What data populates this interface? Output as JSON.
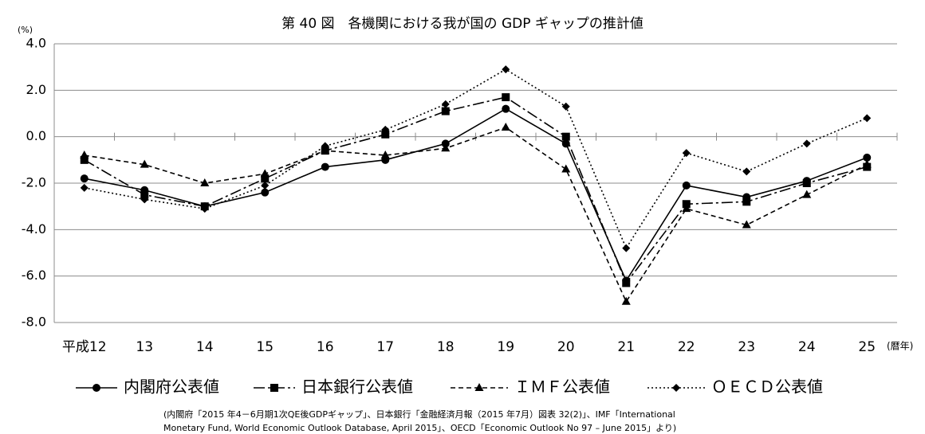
{
  "chart_data": {
    "type": "line",
    "title": "第 40 図　各機関における我が国の GDP ギャップの推計値",
    "y_unit": "(%)",
    "x_unit": "(暦年)",
    "categories": [
      "平成12",
      "13",
      "14",
      "15",
      "16",
      "17",
      "18",
      "19",
      "20",
      "21",
      "22",
      "23",
      "24",
      "25"
    ],
    "ylim": [
      -8,
      4
    ],
    "yticks": [
      {
        "value": -8,
        "label": "-8.0"
      },
      {
        "value": -6,
        "label": "-6.0"
      },
      {
        "value": -4,
        "label": "-4.0"
      },
      {
        "value": -2,
        "label": "-2.0"
      },
      {
        "value": 0,
        "label": "0.0"
      },
      {
        "value": 2,
        "label": "2.0"
      },
      {
        "value": 4,
        "label": "4.0"
      }
    ],
    "grid": true,
    "series": [
      {
        "name": "内閣府公表値",
        "color": "#000000",
        "marker": "circle",
        "line_style": "solid",
        "values": [
          -1.8,
          -2.3,
          -3.0,
          -2.4,
          -1.3,
          -1.0,
          -0.3,
          1.2,
          -0.3,
          -6.2,
          -2.1,
          -2.6,
          -1.9,
          -0.9
        ]
      },
      {
        "name": "日本銀行公表値",
        "color": "#000000",
        "marker": "square",
        "line_style": "dashdot",
        "values": [
          -1.0,
          -2.5,
          -3.0,
          -1.8,
          -0.6,
          0.1,
          1.1,
          1.7,
          0.0,
          -6.3,
          -2.9,
          -2.8,
          -2.0,
          -1.3
        ]
      },
      {
        "name": "ＩＭＦ公表値",
        "color": "#000000",
        "marker": "triangle",
        "line_style": "dashed",
        "values": [
          -0.8,
          -1.2,
          -2.0,
          -1.6,
          -0.6,
          -0.8,
          -0.5,
          0.4,
          -1.4,
          -7.1,
          -3.1,
          -3.8,
          -2.5,
          -1.2
        ]
      },
      {
        "name": "ＯＥＣＤ公表値",
        "color": "#000000",
        "marker": "diamond",
        "line_style": "dotted",
        "values": [
          -2.2,
          -2.7,
          -3.1,
          -2.1,
          -0.4,
          0.3,
          1.4,
          2.9,
          1.3,
          -4.8,
          -0.7,
          -1.5,
          -0.3,
          0.8
        ]
      }
    ],
    "notes": [
      "(内閣府「2015 年4－6月期1次QE後GDPギャップ」、日本銀行「金融経済月報（2015 年7月）図表 32(2)」、IMF「International",
      "Monetary Fund, World Economic Outlook Database, April 2015」、OECD「Economic Outlook No 97 – June 2015」より)"
    ]
  }
}
